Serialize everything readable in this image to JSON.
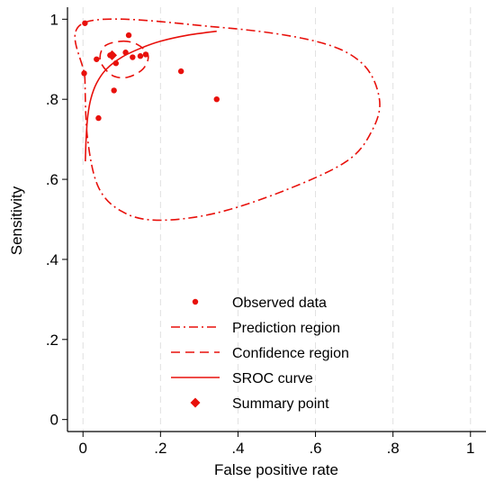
{
  "chart_data": {
    "type": "scatter",
    "title": "",
    "xlabel": "False positive rate",
    "ylabel": "Sensitivity",
    "xlim": [
      -0.04,
      1.04
    ],
    "ylim": [
      -0.03,
      1.03
    ],
    "x_ticks": [
      0,
      0.2,
      0.4,
      0.6,
      0.8,
      1
    ],
    "x_tick_labels": [
      "0",
      ".2",
      ".4",
      ".6",
      ".8",
      "1"
    ],
    "y_ticks": [
      0,
      0.2,
      0.4,
      0.6,
      0.8,
      1
    ],
    "y_tick_labels": [
      "0",
      ".2",
      ".4",
      ".6",
      ".8",
      "1"
    ],
    "grid": "vertical dashed",
    "legend_position": "bottom-inside",
    "colors": {
      "series": "#e8100b"
    },
    "series": [
      {
        "name": "Observed data",
        "style": "dot",
        "points": [
          {
            "x": 0.005,
            "y": 0.99
          },
          {
            "x": 0.003,
            "y": 0.865
          },
          {
            "x": 0.035,
            "y": 0.9
          },
          {
            "x": 0.04,
            "y": 0.753
          },
          {
            "x": 0.07,
            "y": 0.91
          },
          {
            "x": 0.08,
            "y": 0.822
          },
          {
            "x": 0.085,
            "y": 0.89
          },
          {
            "x": 0.11,
            "y": 0.917
          },
          {
            "x": 0.118,
            "y": 0.96
          },
          {
            "x": 0.128,
            "y": 0.905
          },
          {
            "x": 0.148,
            "y": 0.908
          },
          {
            "x": 0.162,
            "y": 0.912
          },
          {
            "x": 0.253,
            "y": 0.87
          },
          {
            "x": 0.345,
            "y": 0.8
          }
        ]
      },
      {
        "name": "Prediction region",
        "style": "dash-dot",
        "points": [
          {
            "x": 0.005,
            "y": 0.992
          },
          {
            "x": 0.35,
            "y": 0.98
          },
          {
            "x": 0.6,
            "y": 0.945
          },
          {
            "x": 0.72,
            "y": 0.89
          },
          {
            "x": 0.765,
            "y": 0.8
          },
          {
            "x": 0.745,
            "y": 0.72
          },
          {
            "x": 0.68,
            "y": 0.645
          },
          {
            "x": 0.52,
            "y": 0.572
          },
          {
            "x": 0.34,
            "y": 0.515
          },
          {
            "x": 0.19,
            "y": 0.498
          },
          {
            "x": 0.1,
            "y": 0.52
          },
          {
            "x": 0.04,
            "y": 0.58
          },
          {
            "x": 0.012,
            "y": 0.7
          },
          {
            "x": 0.005,
            "y": 0.85
          },
          {
            "x": 0.005,
            "y": 0.992
          }
        ]
      },
      {
        "name": "Confidence region",
        "style": "dash",
        "points": [
          {
            "x": 0.1,
            "y": 0.945
          },
          {
            "x": 0.14,
            "y": 0.937
          },
          {
            "x": 0.168,
            "y": 0.91
          },
          {
            "x": 0.155,
            "y": 0.876
          },
          {
            "x": 0.115,
            "y": 0.855
          },
          {
            "x": 0.075,
            "y": 0.86
          },
          {
            "x": 0.045,
            "y": 0.895
          },
          {
            "x": 0.055,
            "y": 0.932
          },
          {
            "x": 0.1,
            "y": 0.945
          }
        ]
      },
      {
        "name": "SROC curve",
        "style": "solid",
        "points": [
          {
            "x": 0.006,
            "y": 0.645
          },
          {
            "x": 0.008,
            "y": 0.7
          },
          {
            "x": 0.012,
            "y": 0.755
          },
          {
            "x": 0.02,
            "y": 0.8
          },
          {
            "x": 0.035,
            "y": 0.84
          },
          {
            "x": 0.06,
            "y": 0.875
          },
          {
            "x": 0.1,
            "y": 0.905
          },
          {
            "x": 0.15,
            "y": 0.928
          },
          {
            "x": 0.2,
            "y": 0.945
          },
          {
            "x": 0.27,
            "y": 0.96
          },
          {
            "x": 0.345,
            "y": 0.97
          }
        ]
      },
      {
        "name": "Summary point",
        "style": "diamond",
        "points": [
          {
            "x": 0.075,
            "y": 0.91
          }
        ]
      }
    ]
  }
}
